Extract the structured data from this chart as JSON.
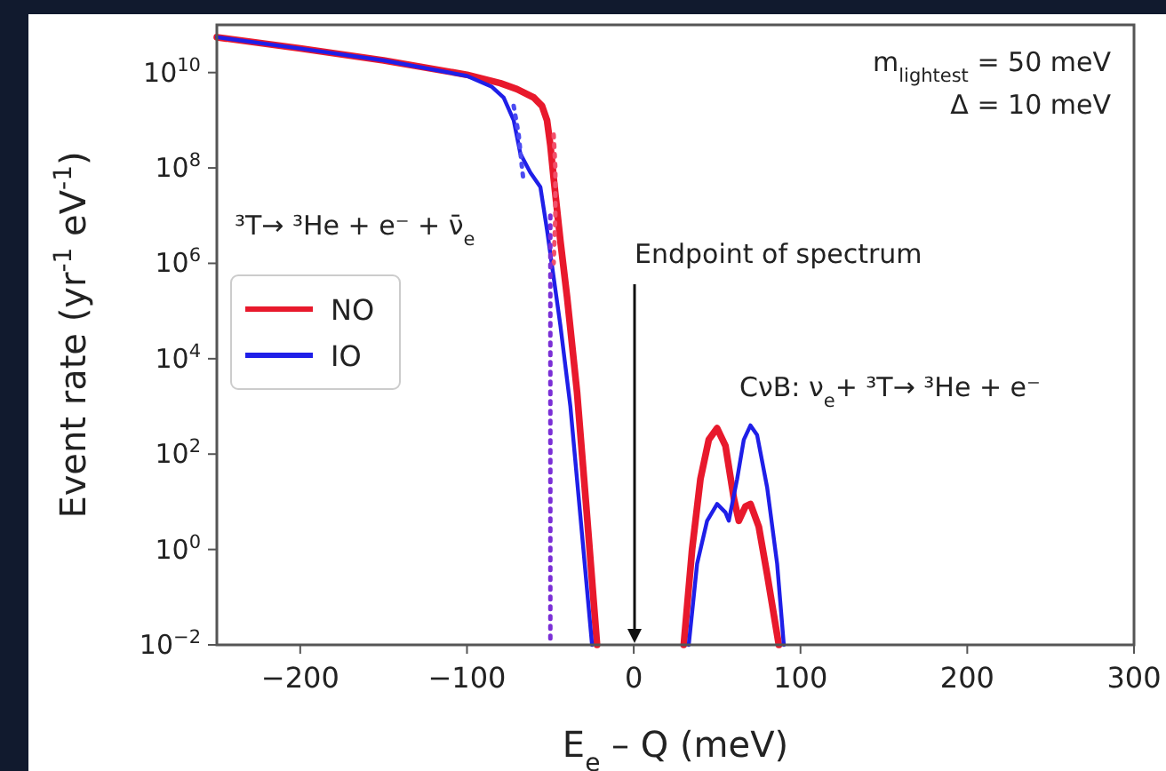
{
  "chart_data": {
    "type": "line",
    "xlabel": "E$_{e}$ – Q (meV)",
    "ylabel": "Event rate (yr$^{-1}$ eV$^{-1}$)",
    "xlim": [
      -250,
      300
    ],
    "ylim": [
      0.01,
      100000000000.0
    ],
    "log": "y",
    "legend": "center left",
    "line_style": "solid",
    "marker": "none",
    "grid": false,
    "xticks": [
      {
        "value": -200,
        "label": "−200"
      },
      {
        "value": -100,
        "label": "−100"
      },
      0,
      100,
      200,
      300
    ],
    "yticks": [
      {
        "value": 0.01,
        "label": "10$^{−2}$"
      },
      {
        "value": 1,
        "label": "10$^{0}$"
      },
      {
        "value": 100,
        "label": "10$^{2}$"
      },
      {
        "value": 10000,
        "label": "10$^{4}$"
      },
      {
        "value": 1000000,
        "label": "10$^{6}$"
      },
      {
        "value": 100000000,
        "label": "10$^{8}$"
      },
      {
        "value": 10000000000,
        "label": "10$^{10}$"
      }
    ],
    "series": [
      {
        "name": "NO",
        "color": "#e8192c",
        "x": [
          -250,
          -200,
          -150,
          -100,
          -80,
          -70,
          -60,
          -55,
          -52,
          -50,
          -48,
          -44,
          -40,
          -34,
          -28,
          -22,
          0,
          30,
          35,
          40,
          45,
          50,
          55,
          60,
          63,
          67,
          70,
          75,
          80,
          87
        ],
        "values": [
          55000000000.0,
          32000000000.0,
          18000000000.0,
          9000000000.0,
          6000000000.0,
          4500000000.0,
          3000000000.0,
          2000000000.0,
          1000000000.0,
          300000000.0,
          60000000.0,
          3000000.0,
          200000.0,
          2000,
          5,
          0.01,
          null,
          0.01,
          1,
          30,
          200,
          350,
          150,
          12,
          4,
          8,
          9,
          3,
          0.3,
          0.01
        ]
      },
      {
        "name": "IO",
        "color": "#1f1fe8",
        "x": [
          -250,
          -200,
          -150,
          -100,
          -85,
          -78,
          -72,
          -68,
          -62,
          -56,
          -52,
          -48,
          -44,
          -38,
          -32,
          -25,
          0,
          33,
          38,
          44,
          50,
          55,
          57,
          62,
          66,
          70,
          74,
          80,
          86,
          90
        ],
        "values": [
          55000000000.0,
          32000000000.0,
          18000000000.0,
          8500000000.0,
          5000000000.0,
          3000000000.0,
          1000000000.0,
          200000000.0,
          80000000.0,
          40000000.0,
          5000000.0,
          500000.0,
          50000.0,
          1000,
          5,
          0.01,
          null,
          0.01,
          0.5,
          4,
          9,
          6,
          4,
          30,
          200,
          400,
          250,
          20,
          0.5,
          0.01
        ]
      },
      {
        "color": "#4b4bf2",
        "line_style": "dotted",
        "x": [
          -72,
          -69,
          -67,
          -66
        ],
        "values": [
          2000000000.0,
          500000000.0,
          100000000.0,
          50000000.0
        ]
      },
      {
        "color": "#f2506a",
        "line_style": "dotted",
        "x": [
          -48,
          -47,
          -47,
          -48
        ],
        "values": [
          500000000.0,
          100000000.0,
          10000000.0,
          1000000.0
        ]
      },
      {
        "color": "#7a2fd6",
        "line_style": "dotted",
        "x": [
          -50,
          -50
        ],
        "values": [
          10000000.0,
          0.01
        ]
      }
    ],
    "annotations": [
      "m$_{lightest}$ = 50 meV",
      "Δ = 10 meV",
      "³T→ ³He + e⁻ + ν̄$_{e}$",
      "Endpoint of spectrum",
      "CνB: ν$_{e}$+ ³T→ ³He + e⁻"
    ]
  }
}
